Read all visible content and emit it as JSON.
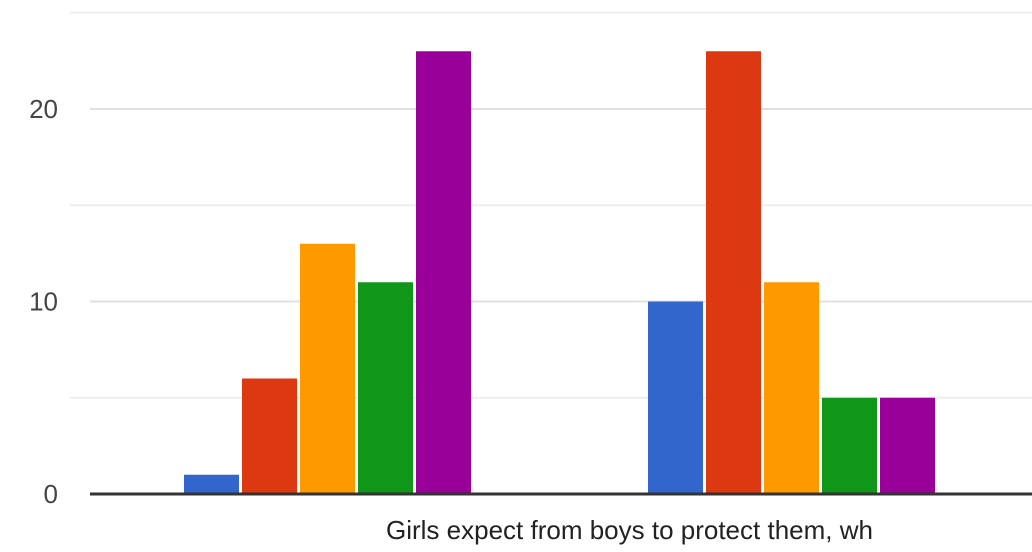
{
  "chart_data": {
    "type": "bar",
    "title": "",
    "xlabel": "",
    "ylabel": "",
    "ylim": [
      0,
      24
    ],
    "yticks": [
      {
        "value": 0,
        "label": "0"
      },
      {
        "value": 10,
        "label": "10"
      },
      {
        "value": 20,
        "label": "20"
      }
    ],
    "minor_gridlines": [
      5,
      15,
      25
    ],
    "grid": true,
    "legend": "none visible",
    "categories": [
      "",
      "Girls expect from boys to protect them, wh"
    ],
    "series": [
      {
        "color": "#3366cc",
        "values": [
          1,
          10
        ]
      },
      {
        "color": "#dc3912",
        "values": [
          6,
          23
        ]
      },
      {
        "color": "#ff9900",
        "values": [
          13,
          11
        ]
      },
      {
        "color": "#109618",
        "values": [
          11,
          5
        ]
      },
      {
        "color": "#990099",
        "values": [
          23,
          5
        ]
      }
    ],
    "colors": {
      "gridline": "#e0e0e0",
      "minor_gridline": "#eeeeee",
      "axis": "#333333"
    }
  }
}
